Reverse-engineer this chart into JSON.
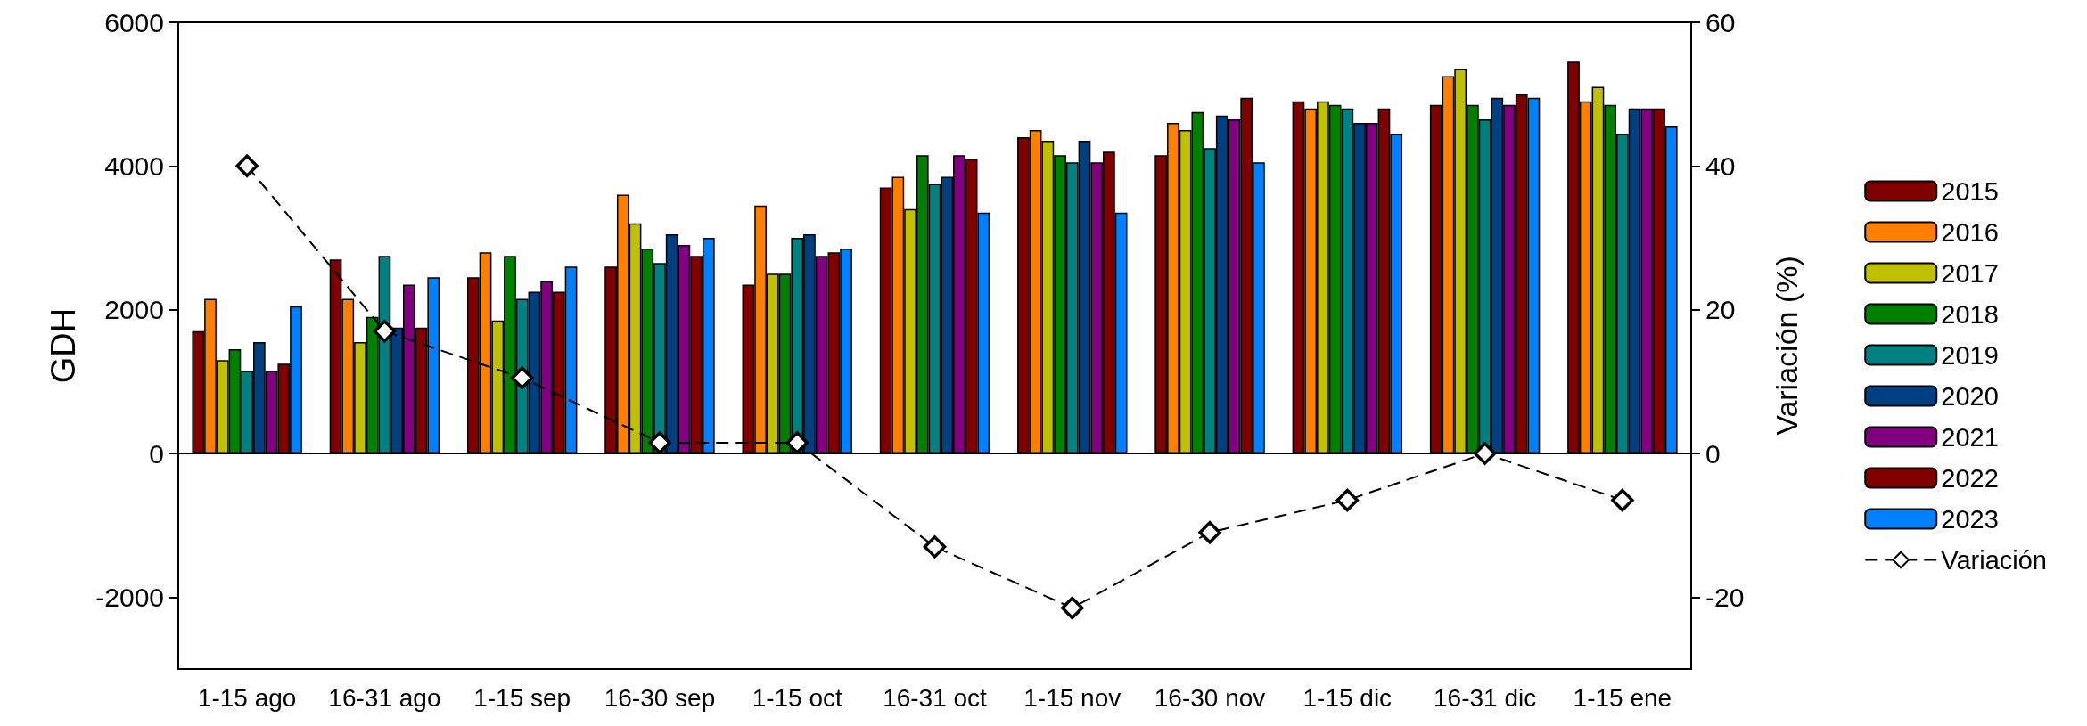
{
  "chart_data": {
    "type": "bar",
    "ylabel": "GDH",
    "y2label": "Variación (%)",
    "categories": [
      "1-15 ago",
      "16-31 ago",
      "1-15 sep",
      "16-30 sep",
      "1-15 oct",
      "16-31 oct",
      "1-15 nov",
      "16-30 nov",
      "1-15 dic",
      "16-31 dic",
      "1-15 ene"
    ],
    "series": [
      {
        "name": "2015",
        "color": "#7f0000",
        "values": [
          1700,
          2700,
          2450,
          2600,
          2350,
          3700,
          4400,
          4150,
          4900,
          4850,
          5450
        ]
      },
      {
        "name": "2016",
        "color": "#ff8000",
        "values": [
          2150,
          2150,
          2800,
          3600,
          3450,
          3850,
          4500,
          4600,
          4800,
          5250,
          4900
        ]
      },
      {
        "name": "2017",
        "color": "#c0c000",
        "values": [
          1300,
          1550,
          1850,
          3200,
          2500,
          3400,
          4350,
          4500,
          4900,
          5350,
          5100
        ]
      },
      {
        "name": "2018",
        "color": "#008000",
        "values": [
          1450,
          1900,
          2750,
          2850,
          2500,
          4150,
          4150,
          4750,
          4850,
          4850,
          4850
        ]
      },
      {
        "name": "2019",
        "color": "#008080",
        "values": [
          1150,
          2750,
          2150,
          2650,
          3000,
          3750,
          4050,
          4250,
          4800,
          4650,
          4450
        ]
      },
      {
        "name": "2020",
        "color": "#004080",
        "values": [
          1550,
          1750,
          2250,
          3050,
          3050,
          3850,
          4350,
          4700,
          4600,
          4950,
          4800
        ]
      },
      {
        "name": "2021",
        "color": "#800080",
        "values": [
          1150,
          2350,
          2400,
          2900,
          2750,
          4150,
          4050,
          4650,
          4600,
          4850,
          4800
        ]
      },
      {
        "name": "2022",
        "color": "#800000",
        "values": [
          1250,
          1750,
          2250,
          2750,
          2800,
          4100,
          4200,
          4950,
          4800,
          5000,
          4800
        ]
      },
      {
        "name": "2023",
        "color": "#0080ff",
        "values": [
          2050,
          2450,
          2600,
          3000,
          2850,
          3350,
          3350,
          4050,
          4450,
          4950,
          4550
        ]
      },
      {
        "name": "Variación",
        "type": "line",
        "axis": "y2",
        "color": "#000000",
        "marker": "diamond",
        "line_style": "dashed",
        "values": [
          40,
          17,
          10.5,
          1.5,
          1.5,
          -13,
          -21.5,
          -11,
          -6.5,
          0,
          -6.5
        ]
      }
    ],
    "ylim": [
      -3000,
      6000
    ],
    "yticks": [
      -2000,
      0,
      2000,
      4000,
      6000
    ],
    "y2lim": [
      -30,
      60
    ],
    "y2ticks": [
      -20,
      0,
      20,
      40,
      60
    ],
    "legend": "right"
  }
}
